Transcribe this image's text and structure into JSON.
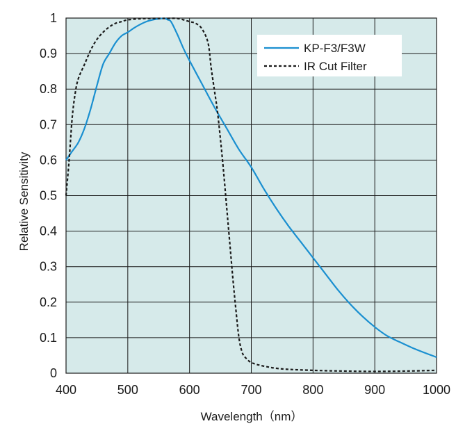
{
  "chart_data": {
    "type": "line",
    "xlabel": "Wavelength（nm）",
    "ylabel": "Relative Sensitivity",
    "xlim": [
      400,
      1000
    ],
    "ylim": [
      0,
      1
    ],
    "grid": true,
    "legend_position": "top-right",
    "colors": {
      "plot_background": "#d6eaea",
      "grid": "#1a1a1a"
    },
    "x_ticks": [
      "400",
      "500",
      "600",
      "700",
      "800",
      "900",
      "1000"
    ],
    "y_ticks": [
      "0",
      "0.1",
      "0.2",
      "0.3",
      "0.4",
      "0.5",
      "0.6",
      "0.7",
      "0.8",
      "0.9",
      "1"
    ],
    "series": [
      {
        "name": "KP-F3/F3W",
        "style": "solid",
        "color": "#1a8fd0",
        "x": [
          400,
          410,
          420,
          430,
          440,
          450,
          460,
          470,
          480,
          490,
          500,
          510,
          520,
          530,
          540,
          550,
          560,
          565,
          570,
          580,
          590,
          600,
          620,
          640,
          660,
          680,
          700,
          720,
          740,
          760,
          780,
          800,
          820,
          840,
          860,
          880,
          900,
          920,
          940,
          960,
          980,
          1000
        ],
        "y": [
          0.6,
          0.625,
          0.65,
          0.69,
          0.745,
          0.81,
          0.87,
          0.9,
          0.93,
          0.95,
          0.96,
          0.972,
          0.982,
          0.99,
          0.995,
          0.998,
          0.999,
          0.995,
          0.99,
          0.955,
          0.915,
          0.88,
          0.815,
          0.75,
          0.69,
          0.63,
          0.58,
          0.52,
          0.465,
          0.415,
          0.37,
          0.325,
          0.28,
          0.235,
          0.195,
          0.16,
          0.13,
          0.105,
          0.088,
          0.072,
          0.058,
          0.045
        ]
      },
      {
        "name": "IR  Cut Filter",
        "style": "dashed",
        "color": "#1a1a1a",
        "x": [
          400,
          405,
          410,
          415,
          420,
          430,
          440,
          450,
          460,
          470,
          480,
          490,
          500,
          520,
          540,
          560,
          580,
          600,
          610,
          620,
          630,
          635,
          640,
          645,
          650,
          655,
          660,
          665,
          670,
          675,
          680,
          685,
          690,
          700,
          720,
          750,
          800,
          850,
          900,
          950,
          1000
        ],
        "y": [
          0.5,
          0.6,
          0.72,
          0.79,
          0.83,
          0.87,
          0.91,
          0.94,
          0.96,
          0.975,
          0.985,
          0.99,
          0.995,
          0.998,
          0.999,
          0.999,
          0.999,
          0.99,
          0.985,
          0.97,
          0.93,
          0.86,
          0.8,
          0.74,
          0.66,
          0.57,
          0.47,
          0.37,
          0.27,
          0.18,
          0.1,
          0.06,
          0.045,
          0.03,
          0.02,
          0.012,
          0.008,
          0.006,
          0.005,
          0.006,
          0.008
        ]
      }
    ]
  }
}
